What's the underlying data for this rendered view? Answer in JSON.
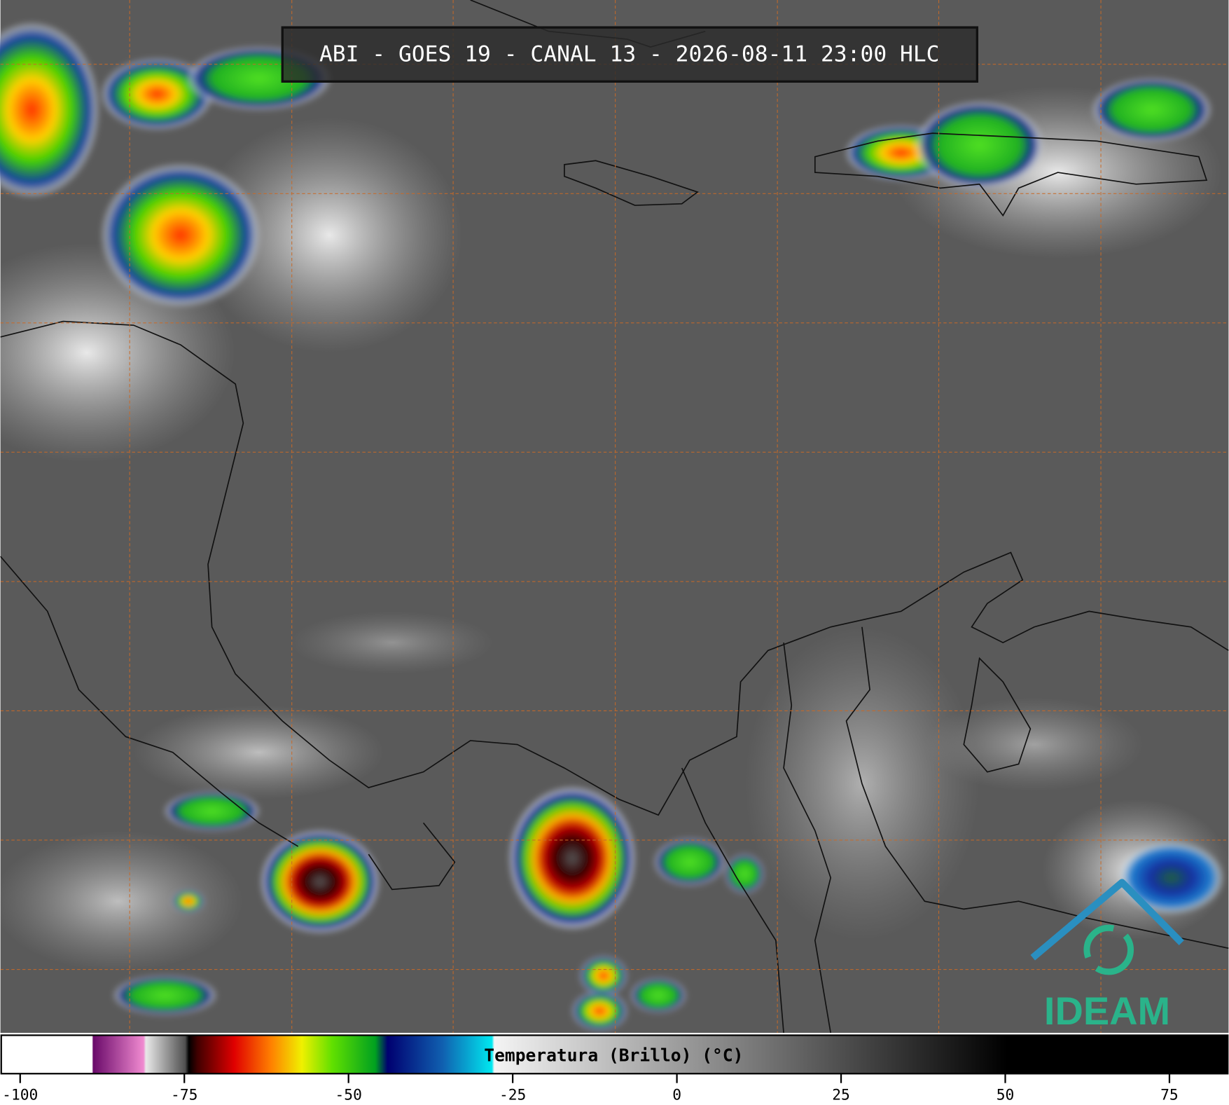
{
  "header": {
    "title": "ABI - GOES 19 - CANAL 13 - 2026-08-11 23:00 HLC"
  },
  "colorbar": {
    "label": "Temperatura (Brillo) (°C)",
    "lim": [
      -103,
      84
    ],
    "ticks": [
      -100,
      -75,
      -50,
      -25,
      0,
      25,
      50,
      75
    ]
  },
  "logo": {
    "text": "IDEAM"
  }
}
